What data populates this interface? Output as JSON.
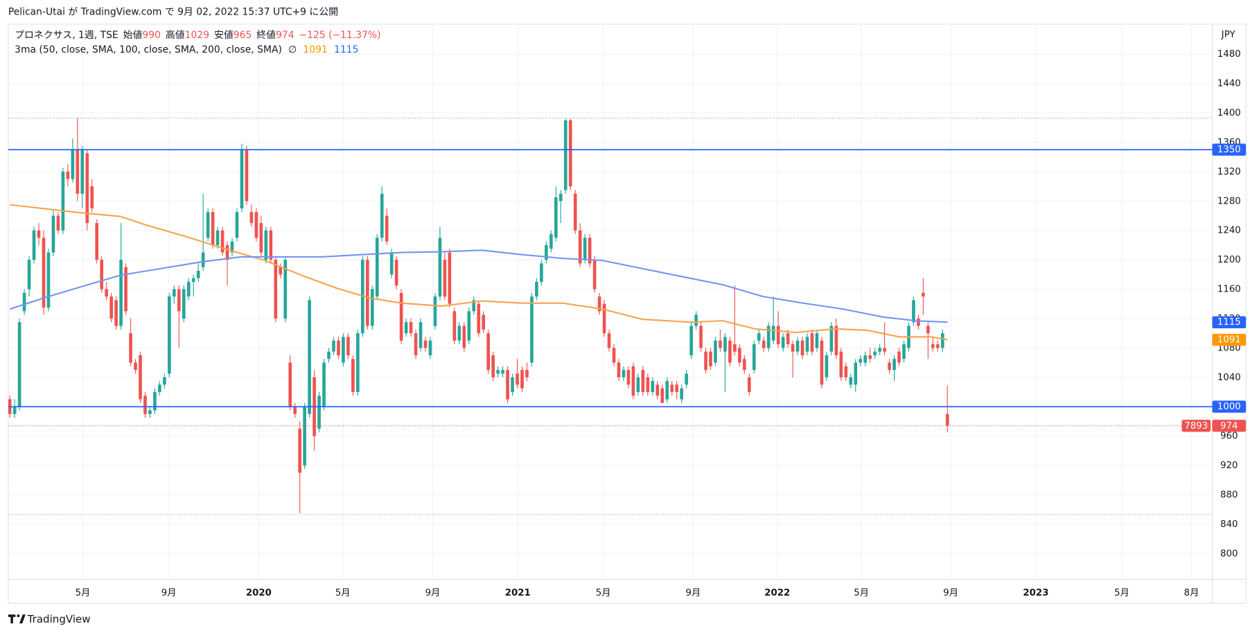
{
  "header": {
    "published": "Pelican-Utai が TradingView.com で 9月 02, 2022 15:37 UTC+9 に公開"
  },
  "footer": {
    "brand": "TradingView"
  },
  "chart_data": {
    "type": "candlestick",
    "title": "プロネクサス, 1週, TSE",
    "ohlc_legend": [
      {
        "label": "始値",
        "value": 990
      },
      {
        "label": "高値",
        "value": 1029
      },
      {
        "label": "安値",
        "value": 965
      },
      {
        "label": "終値",
        "value": 974
      }
    ],
    "change": "−125 (−11.37%)",
    "indicator": {
      "label": "3ma (50, close, SMA, 100, close, SMA, 200, close, SMA)",
      "symbol": "∅"
    },
    "currency": "JPY",
    "up_color": "#26a69a",
    "down_color": "#ef5350",
    "candles": [
      [
        1010,
        1015,
        985,
        990
      ],
      [
        990,
        1010,
        985,
        1000
      ],
      [
        1000,
        1120,
        995,
        1115
      ],
      [
        1130,
        1160,
        1125,
        1155
      ],
      [
        1160,
        1205,
        1150,
        1200
      ],
      [
        1200,
        1245,
        1195,
        1240
      ],
      [
        1240,
        1250,
        1220,
        1230
      ],
      [
        1230,
        1240,
        1125,
        1135
      ],
      [
        1135,
        1215,
        1130,
        1210
      ],
      [
        1210,
        1268,
        1205,
        1260
      ],
      [
        1260,
        1265,
        1235,
        1240
      ],
      [
        1240,
        1325,
        1235,
        1320
      ],
      [
        1320,
        1330,
        1300,
        1310
      ],
      [
        1310,
        1365,
        1305,
        1350
      ],
      [
        1350,
        1393,
        1280,
        1290
      ],
      [
        1290,
        1355,
        1270,
        1350
      ],
      [
        1345,
        1350,
        1240,
        1250
      ],
      [
        1300,
        1310,
        1265,
        1270
      ],
      [
        1250,
        1255,
        1195,
        1200
      ],
      [
        1200,
        1205,
        1155,
        1160
      ],
      [
        1160,
        1170,
        1145,
        1150
      ],
      [
        1150,
        1155,
        1115,
        1120
      ],
      [
        1145,
        1150,
        1105,
        1110
      ],
      [
        1110,
        1250,
        1105,
        1200
      ],
      [
        1190,
        1195,
        1125,
        1130
      ],
      [
        1100,
        1120,
        1055,
        1060
      ],
      [
        1060,
        1065,
        1045,
        1050
      ],
      [
        1070,
        1075,
        1005,
        1010
      ],
      [
        1015,
        1020,
        985,
        990
      ],
      [
        990,
        1000,
        985,
        995
      ],
      [
        995,
        1025,
        990,
        1020
      ],
      [
        1020,
        1035,
        1015,
        1030
      ],
      [
        1030,
        1045,
        1025,
        1040
      ],
      [
        1045,
        1155,
        1040,
        1150
      ],
      [
        1150,
        1165,
        1140,
        1160
      ],
      [
        1160,
        1165,
        1080,
        1130
      ],
      [
        1120,
        1165,
        1115,
        1160
      ],
      [
        1150,
        1175,
        1145,
        1170
      ],
      [
        1170,
        1180,
        1150,
        1175
      ],
      [
        1175,
        1195,
        1170,
        1185
      ],
      [
        1190,
        1290,
        1185,
        1210
      ],
      [
        1230,
        1270,
        1225,
        1265
      ],
      [
        1265,
        1270,
        1215,
        1220
      ],
      [
        1220,
        1245,
        1215,
        1240
      ],
      [
        1240,
        1245,
        1205,
        1210
      ],
      [
        1220,
        1225,
        1165,
        1200
      ],
      [
        1210,
        1230,
        1205,
        1225
      ],
      [
        1230,
        1270,
        1225,
        1265
      ],
      [
        1270,
        1358,
        1265,
        1350
      ],
      [
        1350,
        1355,
        1275,
        1280
      ],
      [
        1265,
        1275,
        1245,
        1250
      ],
      [
        1265,
        1270,
        1225,
        1230
      ],
      [
        1250,
        1260,
        1205,
        1210
      ],
      [
        1200,
        1245,
        1195,
        1240
      ],
      [
        1240,
        1245,
        1195,
        1200
      ],
      [
        1200,
        1205,
        1115,
        1120
      ],
      [
        1190,
        1195,
        1175,
        1180
      ],
      [
        1120,
        1205,
        1115,
        1200
      ],
      [
        1060,
        1070,
        995,
        1000
      ],
      [
        1000,
        1005,
        985,
        990
      ],
      [
        970,
        980,
        855,
        910
      ],
      [
        920,
        1005,
        915,
        1000
      ],
      [
        990,
        1150,
        985,
        1145
      ],
      [
        1040,
        1050,
        940,
        960
      ],
      [
        970,
        1020,
        965,
        1015
      ],
      [
        1000,
        1065,
        995,
        1060
      ],
      [
        1065,
        1080,
        1060,
        1075
      ],
      [
        1075,
        1095,
        1070,
        1090
      ],
      [
        1090,
        1095,
        1065,
        1070
      ],
      [
        1060,
        1100,
        1055,
        1095
      ],
      [
        1095,
        1100,
        1065,
        1070
      ],
      [
        1065,
        1070,
        1015,
        1020
      ],
      [
        1020,
        1105,
        1015,
        1100
      ],
      [
        1100,
        1205,
        1095,
        1200
      ],
      [
        1200,
        1205,
        1105,
        1110
      ],
      [
        1110,
        1165,
        1105,
        1160
      ],
      [
        1150,
        1235,
        1145,
        1230
      ],
      [
        1230,
        1300,
        1225,
        1290
      ],
      [
        1260,
        1270,
        1220,
        1225
      ],
      [
        1180,
        1215,
        1175,
        1210
      ],
      [
        1200,
        1205,
        1160,
        1165
      ],
      [
        1155,
        1160,
        1085,
        1090
      ],
      [
        1100,
        1120,
        1095,
        1115
      ],
      [
        1115,
        1120,
        1095,
        1100
      ],
      [
        1100,
        1105,
        1065,
        1070
      ],
      [
        1080,
        1120,
        1075,
        1115
      ],
      [
        1090,
        1095,
        1075,
        1080
      ],
      [
        1070,
        1095,
        1065,
        1090
      ],
      [
        1110,
        1155,
        1105,
        1150
      ],
      [
        1150,
        1245,
        1145,
        1230
      ],
      [
        1200,
        1210,
        1145,
        1150
      ],
      [
        1210,
        1215,
        1135,
        1140
      ],
      [
        1130,
        1135,
        1085,
        1090
      ],
      [
        1090,
        1115,
        1085,
        1110
      ],
      [
        1110,
        1115,
        1075,
        1080
      ],
      [
        1090,
        1135,
        1085,
        1130
      ],
      [
        1130,
        1150,
        1125,
        1145
      ],
      [
        1140,
        1145,
        1095,
        1100
      ],
      [
        1125,
        1130,
        1100,
        1105
      ],
      [
        1100,
        1105,
        1045,
        1050
      ],
      [
        1070,
        1075,
        1035,
        1040
      ],
      [
        1045,
        1055,
        1040,
        1050
      ],
      [
        1045,
        1055,
        1040,
        1050
      ],
      [
        1050,
        1055,
        1005,
        1010
      ],
      [
        1020,
        1045,
        1015,
        1040
      ],
      [
        1045,
        1065,
        1025,
        1030
      ],
      [
        1050,
        1055,
        1020,
        1025
      ],
      [
        1050,
        1060,
        1035,
        1040
      ],
      [
        1060,
        1155,
        1055,
        1150
      ],
      [
        1150,
        1175,
        1145,
        1170
      ],
      [
        1170,
        1200,
        1165,
        1195
      ],
      [
        1200,
        1225,
        1195,
        1220
      ],
      [
        1215,
        1240,
        1210,
        1235
      ],
      [
        1230,
        1300,
        1225,
        1285
      ],
      [
        1280,
        1295,
        1250,
        1290
      ],
      [
        1295,
        1392,
        1290,
        1390
      ],
      [
        1390,
        1392,
        1295,
        1300
      ],
      [
        1290,
        1295,
        1235,
        1240
      ],
      [
        1240,
        1250,
        1190,
        1195
      ],
      [
        1200,
        1235,
        1195,
        1230
      ],
      [
        1230,
        1235,
        1190,
        1195
      ],
      [
        1200,
        1205,
        1155,
        1160
      ],
      [
        1150,
        1155,
        1125,
        1130
      ],
      [
        1140,
        1145,
        1095,
        1100
      ],
      [
        1100,
        1105,
        1075,
        1080
      ],
      [
        1080,
        1085,
        1055,
        1060
      ],
      [
        1060,
        1065,
        1035,
        1040
      ],
      [
        1040,
        1055,
        1035,
        1050
      ],
      [
        1050,
        1055,
        1025,
        1030
      ],
      [
        1055,
        1060,
        1010,
        1015
      ],
      [
        1020,
        1045,
        1015,
        1040
      ],
      [
        1050,
        1055,
        1015,
        1020
      ],
      [
        1040,
        1045,
        1015,
        1020
      ],
      [
        1020,
        1040,
        1015,
        1035
      ],
      [
        1030,
        1035,
        1010,
        1015
      ],
      [
        1025,
        1030,
        1005,
        1005
      ],
      [
        1010,
        1040,
        1005,
        1035
      ],
      [
        1030,
        1035,
        1015,
        1020
      ],
      [
        1030,
        1035,
        1010,
        1020
      ],
      [
        1010,
        1030,
        1005,
        1025
      ],
      [
        1030,
        1050,
        1025,
        1045
      ],
      [
        1070,
        1115,
        1065,
        1110
      ],
      [
        1110,
        1130,
        1105,
        1125
      ],
      [
        1110,
        1115,
        1075,
        1080
      ],
      [
        1075,
        1080,
        1045,
        1050
      ],
      [
        1075,
        1080,
        1050,
        1055
      ],
      [
        1060,
        1095,
        1055,
        1090
      ],
      [
        1090,
        1105,
        1075,
        1080
      ],
      [
        1075,
        1100,
        1020,
        1095
      ],
      [
        1090,
        1095,
        1055,
        1060
      ],
      [
        1085,
        1165,
        1070,
        1075
      ],
      [
        1080,
        1085,
        1055,
        1060
      ],
      [
        1065,
        1070,
        1045,
        1050
      ],
      [
        1040,
        1045,
        1015,
        1020
      ],
      [
        1050,
        1090,
        1045,
        1085
      ],
      [
        1090,
        1105,
        1085,
        1100
      ],
      [
        1090,
        1095,
        1075,
        1080
      ],
      [
        1080,
        1115,
        1075,
        1110
      ],
      [
        1090,
        1150,
        1085,
        1110
      ],
      [
        1110,
        1130,
        1080,
        1085
      ],
      [
        1080,
        1100,
        1075,
        1095
      ],
      [
        1100,
        1105,
        1080,
        1085
      ],
      [
        1085,
        1090,
        1040,
        1075
      ],
      [
        1075,
        1095,
        1070,
        1090
      ],
      [
        1090,
        1095,
        1065,
        1070
      ],
      [
        1075,
        1100,
        1070,
        1095
      ],
      [
        1100,
        1105,
        1070,
        1075
      ],
      [
        1080,
        1105,
        1075,
        1100
      ],
      [
        1090,
        1095,
        1025,
        1030
      ],
      [
        1040,
        1075,
        1035,
        1070
      ],
      [
        1075,
        1115,
        1070,
        1110
      ],
      [
        1110,
        1120,
        1065,
        1070
      ],
      [
        1075,
        1080,
        1035,
        1040
      ],
      [
        1055,
        1060,
        1035,
        1040
      ],
      [
        1030,
        1045,
        1025,
        1040
      ],
      [
        1030,
        1065,
        1020,
        1060
      ],
      [
        1060,
        1070,
        1055,
        1065
      ],
      [
        1060,
        1075,
        1055,
        1070
      ],
      [
        1070,
        1080,
        1060,
        1065
      ],
      [
        1070,
        1080,
        1065,
        1075
      ],
      [
        1075,
        1085,
        1070,
        1080
      ],
      [
        1080,
        1115,
        1070,
        1075
      ],
      [
        1060,
        1065,
        1045,
        1050
      ],
      [
        1050,
        1070,
        1035,
        1065
      ],
      [
        1075,
        1080,
        1055,
        1060
      ],
      [
        1065,
        1090,
        1060,
        1085
      ],
      [
        1080,
        1115,
        1075,
        1110
      ],
      [
        1115,
        1150,
        1110,
        1145
      ],
      [
        1120,
        1125,
        1105,
        1110
      ],
      [
        1155,
        1175,
        1125,
        1150
      ],
      [
        1110,
        1115,
        1065,
        1100
      ],
      [
        1085,
        1095,
        1075,
        1080
      ],
      [
        1085,
        1090,
        1075,
        1080
      ],
      [
        1080,
        1105,
        1075,
        1100
      ],
      [
        990,
        1029,
        965,
        974
      ]
    ],
    "lines": [
      {
        "color": "#f7a24b",
        "last": 1091,
        "x": [
          0,
          14.6,
          22.9,
          27.9,
          36.2,
          44.5,
          52.8,
          61.1,
          67.8,
          74.4,
          81.1,
          89.4,
          97.7,
          106,
          114.3,
          122.6,
          130.9,
          140.9,
          147.5,
          154.2,
          162.5,
          170.8,
          177.4,
          184.1,
          190.7,
          194
        ],
        "values": [
          1275,
          1264,
          1259,
          1248,
          1232,
          1215,
          1199,
          1177,
          1161,
          1148,
          1141,
          1137,
          1144,
          1141,
          1141,
          1133,
          1119,
          1115,
          1117,
          1106,
          1101,
          1106,
          1104,
          1095,
          1095,
          1091
        ]
      },
      {
        "color": "#7094f0",
        "last": 1115,
        "x": [
          0,
          8,
          14.6,
          22.9,
          31.2,
          39.5,
          47.8,
          56.1,
          64.5,
          72.8,
          81.1,
          89.4,
          97.7,
          106,
          114.3,
          122.6,
          130.9,
          139.2,
          147.5,
          155.8,
          164.1,
          172.4,
          180.7,
          187.4,
          194
        ],
        "values": [
          1133,
          1150,
          1163,
          1179,
          1188,
          1197,
          1204,
          1204,
          1204,
          1207,
          1210,
          1211,
          1213,
          1207,
          1202,
          1199,
          1188,
          1177,
          1166,
          1150,
          1141,
          1133,
          1122,
          1117,
          1115
        ]
      }
    ],
    "levels": [
      {
        "value": 1350,
        "color": "#2962ff"
      },
      {
        "value": 1000,
        "color": "#2962ff"
      }
    ],
    "dotted_levels": [
      1393,
      853
    ],
    "last_price": {
      "value": 974,
      "tag": "7893"
    },
    "ylim": [
      765,
      1521
    ],
    "yticks": [
      800,
      840,
      880,
      920,
      960,
      1000,
      1040,
      1080,
      1120,
      1160,
      1200,
      1240,
      1280,
      1320,
      1360,
      1400,
      1440,
      1480
    ],
    "xlim": [
      -0.33,
      248.8
    ],
    "xticks": [
      {
        "value": 15.1,
        "label": "5月"
      },
      {
        "value": 32.9,
        "label": "9月"
      },
      {
        "value": 51.5,
        "label": "2020"
      },
      {
        "value": 68.9,
        "label": "5月"
      },
      {
        "value": 87.5,
        "label": "9月"
      },
      {
        "value": 105.1,
        "label": "2021"
      },
      {
        "value": 122.8,
        "label": "5月"
      },
      {
        "value": 141.4,
        "label": "9月"
      },
      {
        "value": 158.8,
        "label": "2022"
      },
      {
        "value": 176.2,
        "label": "5月"
      },
      {
        "value": 194.7,
        "label": "9月"
      },
      {
        "value": 212.3,
        "label": "2023"
      },
      {
        "value": 230.1,
        "label": "5月"
      },
      {
        "value": 244.5,
        "label": "8月"
      }
    ],
    "grid": true
  }
}
